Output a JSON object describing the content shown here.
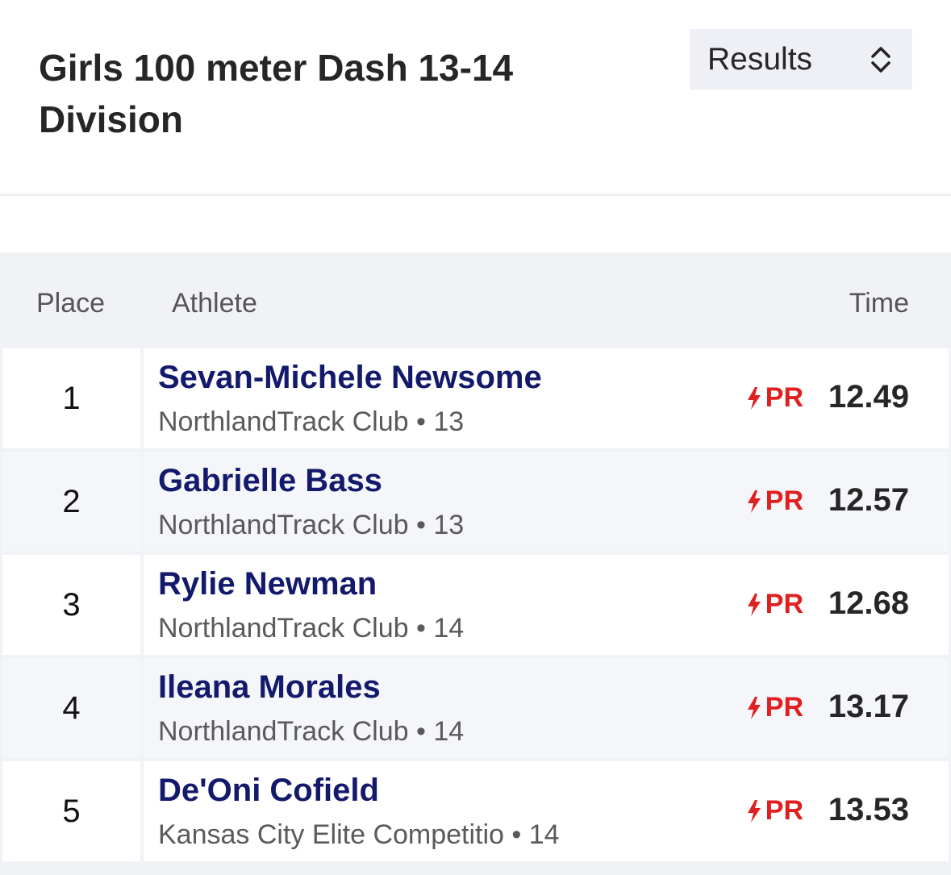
{
  "header": {
    "title": "Girls 100 meter Dash 13-14 Division",
    "view_select": "Results"
  },
  "table": {
    "headers": {
      "place": "Place",
      "athlete": "Athlete",
      "time": "Time"
    },
    "rows": [
      {
        "place": "1",
        "name": "Sevan-Michele Newsome",
        "team": "NorthlandTrack Club",
        "age": "13",
        "badge": "PR",
        "time": "12.49"
      },
      {
        "place": "2",
        "name": "Gabrielle Bass",
        "team": "NorthlandTrack Club",
        "age": "13",
        "badge": "PR",
        "time": "12.57"
      },
      {
        "place": "3",
        "name": "Rylie Newman",
        "team": "NorthlandTrack Club",
        "age": "14",
        "badge": "PR",
        "time": "12.68"
      },
      {
        "place": "4",
        "name": "Ileana Morales",
        "team": "NorthlandTrack Club",
        "age": "14",
        "badge": "PR",
        "time": "13.17"
      },
      {
        "place": "5",
        "name": "De'Oni Cofield",
        "team": "Kansas City Elite Competitio",
        "age": "14",
        "badge": "PR",
        "time": "13.53"
      }
    ]
  },
  "colors": {
    "name": "#141a6b",
    "pr": "#e02020",
    "select_bg": "#eef0f5"
  },
  "icons": {
    "select": "chevron-up-down-icon",
    "pr": "lightning-bolt-icon"
  }
}
